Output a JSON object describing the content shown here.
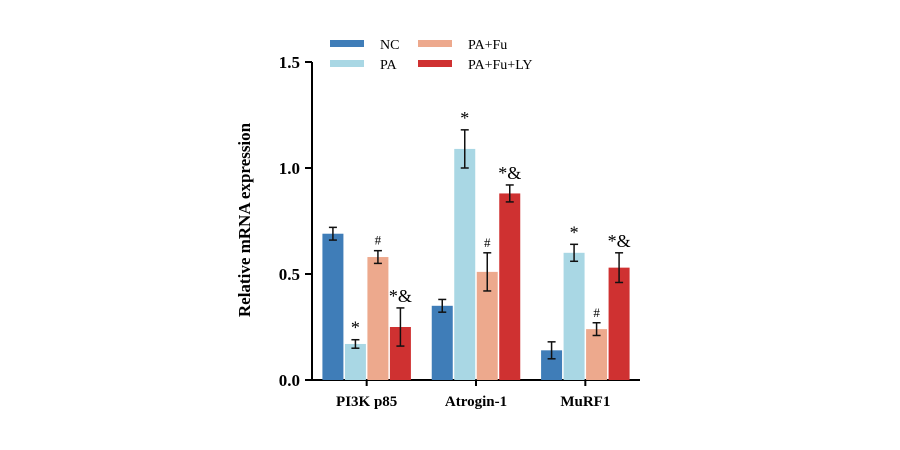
{
  "chart_data": {
    "type": "bar",
    "ylabel": "Relative mRNA expression",
    "ylim": [
      0,
      1.5
    ],
    "yticks": [
      "0.0",
      "0.5",
      "1.0",
      "1.5"
    ],
    "categories": [
      "PI3K p85",
      "Atrogin-1",
      "MuRF1"
    ],
    "grid": false,
    "legend_position": "top",
    "series": [
      {
        "name": "NC",
        "color": "#3f7db8",
        "values": [
          0.69,
          0.35,
          0.14
        ],
        "errors": [
          0.03,
          0.03,
          0.04
        ],
        "annotations": [
          "",
          "",
          ""
        ]
      },
      {
        "name": "PA",
        "color": "#a9d7e4",
        "values": [
          0.17,
          1.09,
          0.6
        ],
        "errors": [
          0.02,
          0.09,
          0.04
        ],
        "annotations": [
          "*",
          "*",
          "*"
        ]
      },
      {
        "name": "PA+Fu",
        "color": "#eda98d",
        "values": [
          0.58,
          0.51,
          0.24
        ],
        "errors": [
          0.03,
          0.09,
          0.03
        ],
        "annotations": [
          "#",
          "#",
          "#"
        ]
      },
      {
        "name": "PA+Fu+LY",
        "color": "#cf3131",
        "values": [
          0.25,
          0.88,
          0.53
        ],
        "errors": [
          0.09,
          0.04,
          0.07
        ],
        "annotations": [
          "*&",
          "*&",
          "*&"
        ]
      }
    ]
  }
}
